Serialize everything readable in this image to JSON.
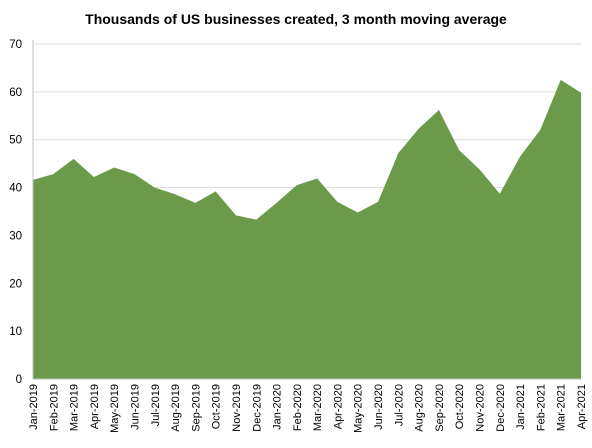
{
  "chart_data": {
    "type": "area",
    "title": "Thousands of US businesses created, 3 month moving average",
    "xlabel": "",
    "ylabel": "",
    "ylim": [
      0,
      70
    ],
    "yticks": [
      0,
      10,
      20,
      30,
      40,
      50,
      60,
      70
    ],
    "grid": true,
    "legend": "none",
    "fill_color": "#6a9a4a",
    "categories": [
      "Jan-2019",
      "Feb-2019",
      "Mar-2019",
      "Apr-2019",
      "May-2019",
      "Jun-2019",
      "Jul-2019",
      "Aug-2019",
      "Sep-2019",
      "Oct-2019",
      "Nov-2019",
      "Dec-2019",
      "Jan-2020",
      "Feb-2020",
      "Mar-2020",
      "Apr-2020",
      "May-2020",
      "Jun-2020",
      "Jul-2020",
      "Aug-2020",
      "Sep-2020",
      "Oct-2020",
      "Nov-2020",
      "Dec-2020",
      "Jan-2021",
      "Feb-2021",
      "Mar-2021",
      "Apr-2021"
    ],
    "values": [
      41.6,
      42.8,
      46.0,
      42.2,
      44.2,
      42.8,
      40.0,
      38.6,
      36.8,
      39.2,
      34.2,
      33.3,
      36.8,
      40.5,
      41.9,
      37.0,
      34.8,
      37.0,
      47.2,
      52.3,
      56.2,
      47.8,
      43.8,
      38.7,
      46.5,
      52.1,
      62.5,
      59.8
    ]
  }
}
